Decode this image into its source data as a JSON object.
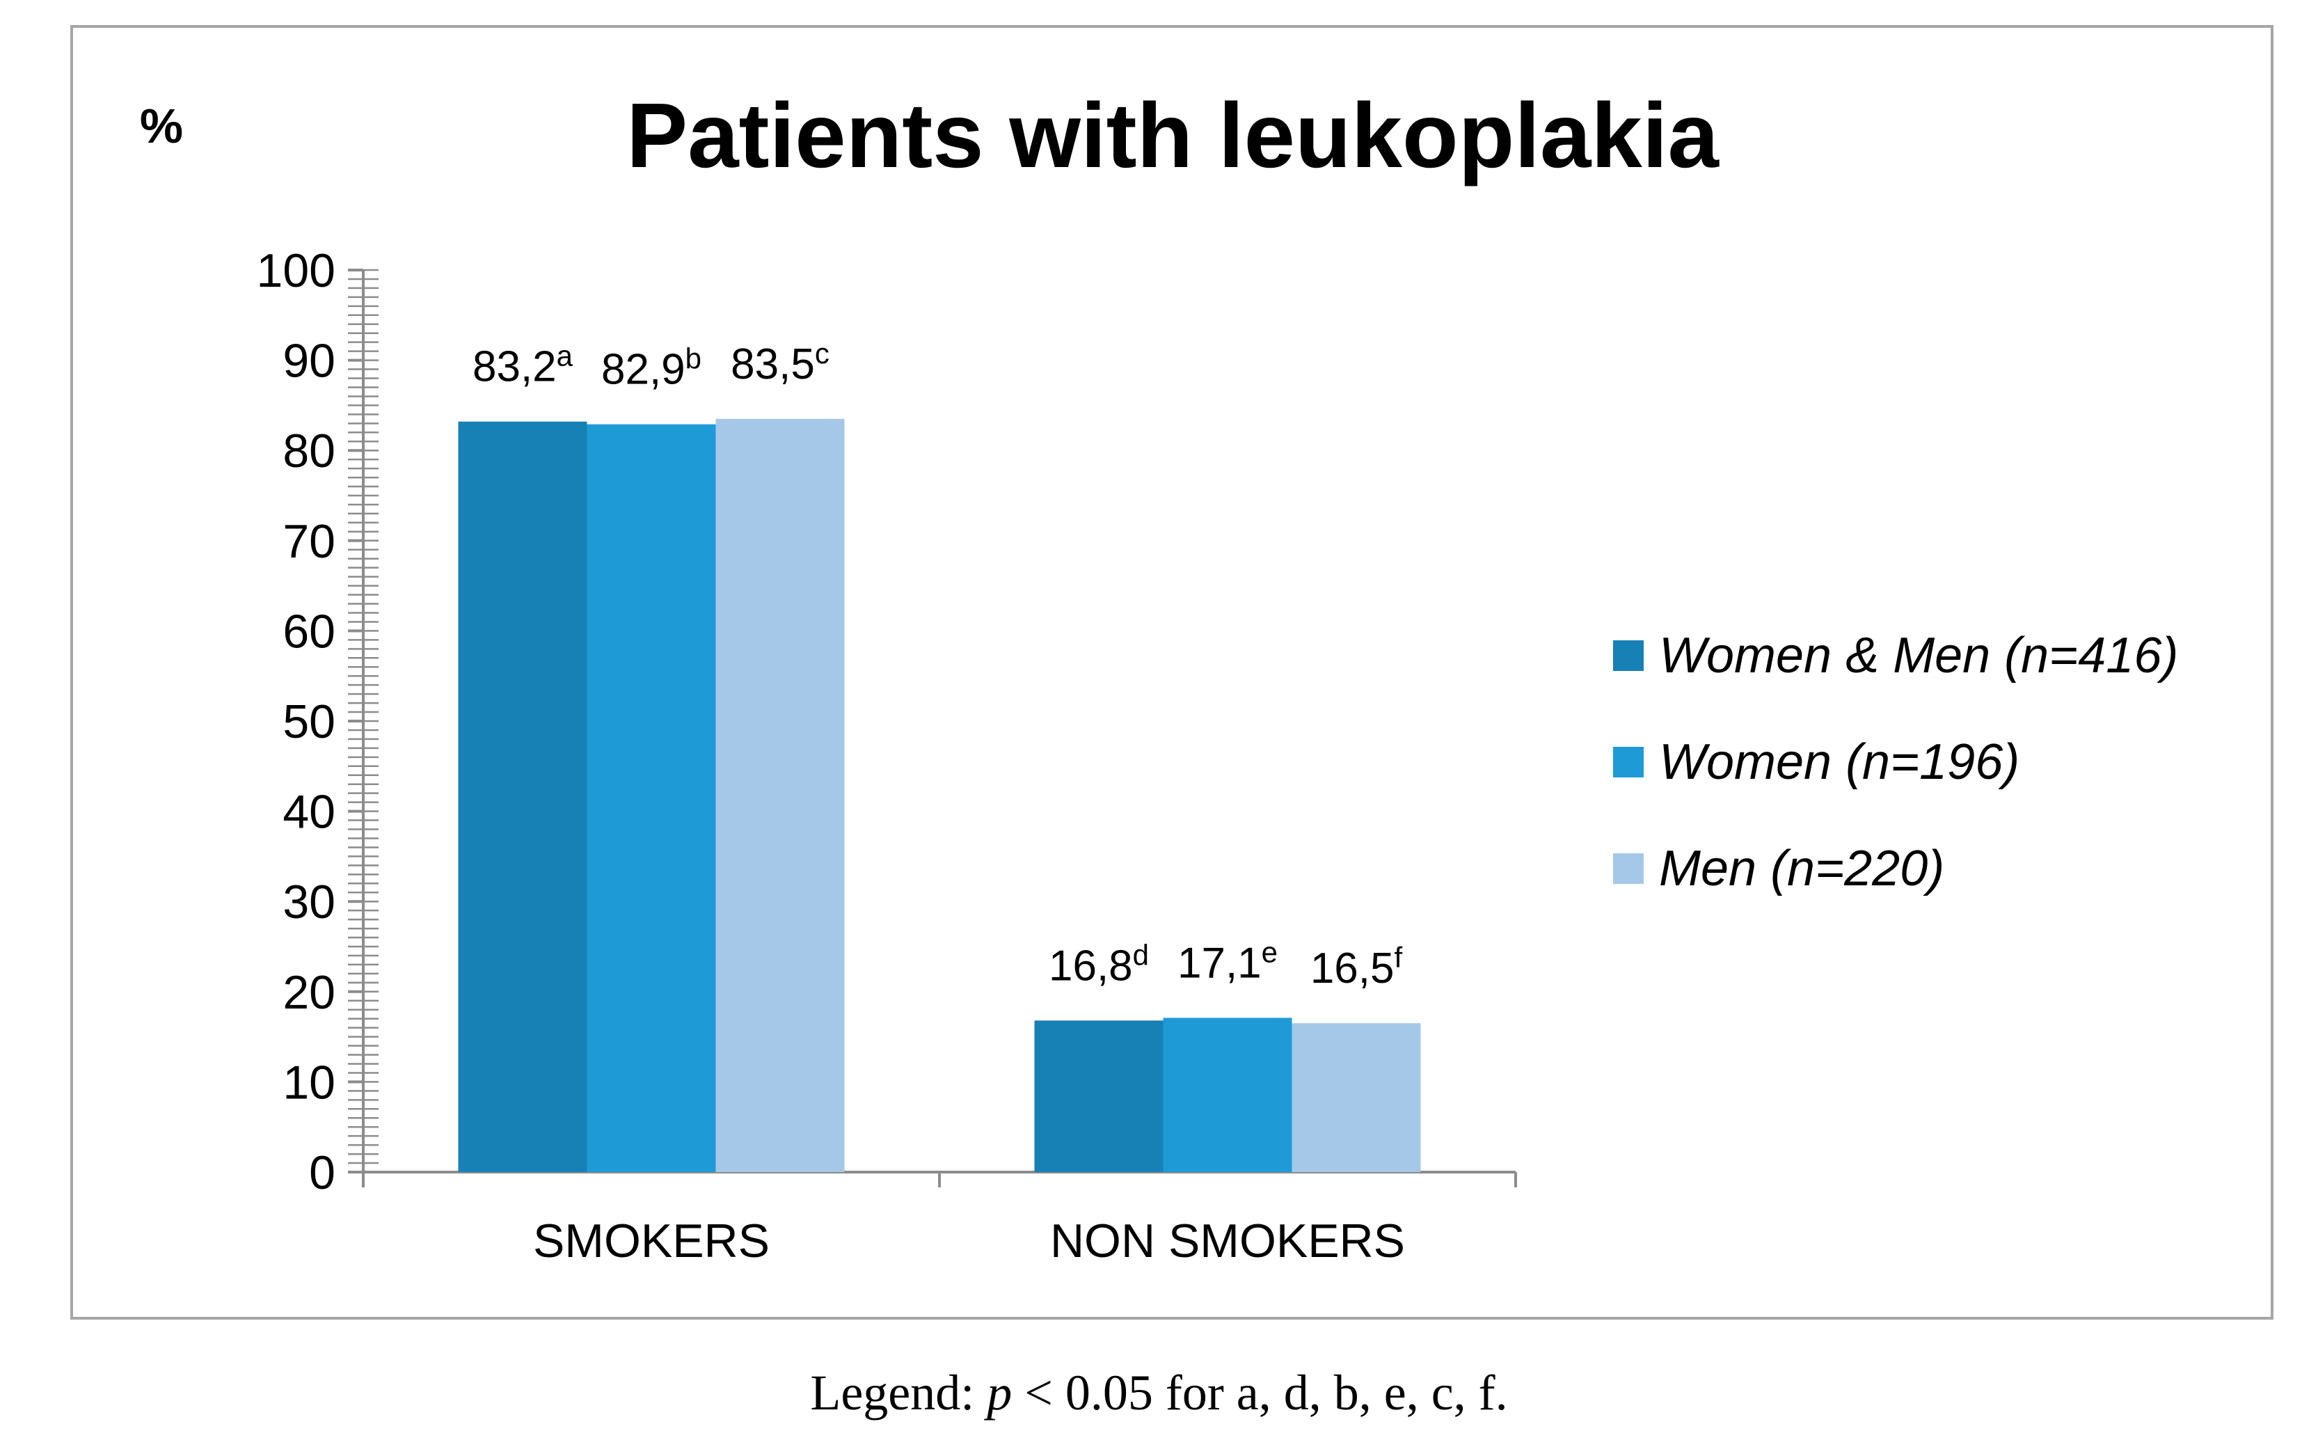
{
  "chart_data": {
    "type": "bar",
    "title": "Patients with leukoplakia",
    "ylabel": "%",
    "xlabel": "",
    "ylim": [
      0,
      100
    ],
    "yticks": [
      0,
      10,
      20,
      30,
      40,
      50,
      60,
      70,
      80,
      90,
      100
    ],
    "categories": [
      "SMOKERS",
      "NON SMOKERS"
    ],
    "series": [
      {
        "name": "Women & Men (n=416)",
        "color": "#1780b5",
        "values": [
          83.2,
          16.8
        ],
        "labels": [
          "83,2",
          "16,8"
        ],
        "sups": [
          "a",
          "d"
        ]
      },
      {
        "name": "Women (n=196)",
        "color": "#1e9bd7",
        "values": [
          82.9,
          17.1
        ],
        "labels": [
          "82,9",
          "17,1"
        ],
        "sups": [
          "b",
          "e"
        ]
      },
      {
        "name": "Men (n=220)",
        "color": "#a5c8e8",
        "values": [
          83.5,
          16.5
        ],
        "labels": [
          "83,5",
          "16,5"
        ],
        "sups": [
          "c",
          "f"
        ]
      }
    ],
    "legend": "right",
    "grid": false
  },
  "caption": {
    "prefix": "Legend: ",
    "p": "p",
    "suffix": " < 0.05 for a, d, b, e, c, f."
  }
}
